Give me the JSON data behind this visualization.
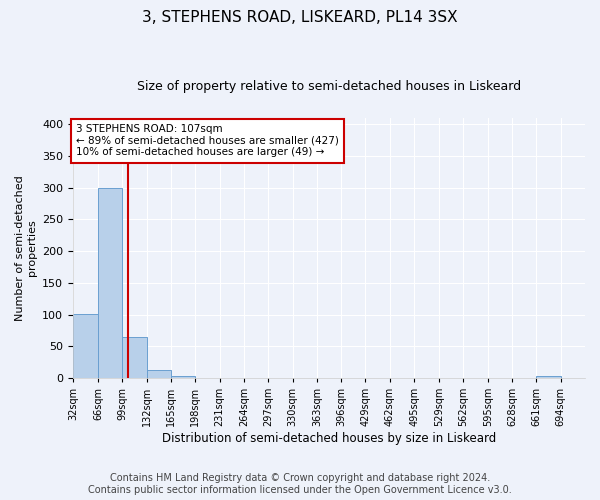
{
  "title": "3, STEPHENS ROAD, LISKEARD, PL14 3SX",
  "subtitle": "Size of property relative to semi-detached houses in Liskeard",
  "xlabel": "Distribution of semi-detached houses by size in Liskeard",
  "ylabel": "Number of semi-detached\nproperties",
  "footer": "Contains HM Land Registry data © Crown copyright and database right 2024.\nContains public sector information licensed under the Open Government Licence v3.0.",
  "bin_labels": [
    "32sqm",
    "66sqm",
    "99sqm",
    "132sqm",
    "165sqm",
    "198sqm",
    "231sqm",
    "264sqm",
    "297sqm",
    "330sqm",
    "363sqm",
    "396sqm",
    "429sqm",
    "462sqm",
    "495sqm",
    "529sqm",
    "562sqm",
    "595sqm",
    "628sqm",
    "661sqm",
    "694sqm"
  ],
  "bar_values": [
    101,
    300,
    65,
    13,
    4,
    0,
    0,
    0,
    0,
    0,
    0,
    0,
    0,
    0,
    0,
    0,
    0,
    0,
    0,
    3,
    0
  ],
  "bar_color": "#b8d0ea",
  "bar_edge_color": "#6a9fd0",
  "property_line_x": 107,
  "bin_edges": [
    32,
    66,
    99,
    132,
    165,
    198,
    231,
    264,
    297,
    330,
    363,
    396,
    429,
    462,
    495,
    529,
    562,
    595,
    628,
    661,
    694,
    727
  ],
  "annotation_title": "3 STEPHENS ROAD: 107sqm",
  "annotation_line1": "← 89% of semi-detached houses are smaller (427)",
  "annotation_line2": "10% of semi-detached houses are larger (49) →",
  "annotation_box_color": "#ffffff",
  "annotation_border_color": "#cc0000",
  "vline_color": "#cc0000",
  "ylim": [
    0,
    410
  ],
  "background_color": "#eef2fa",
  "grid_color": "#ffffff",
  "title_fontsize": 11,
  "subtitle_fontsize": 9,
  "footer_fontsize": 7
}
